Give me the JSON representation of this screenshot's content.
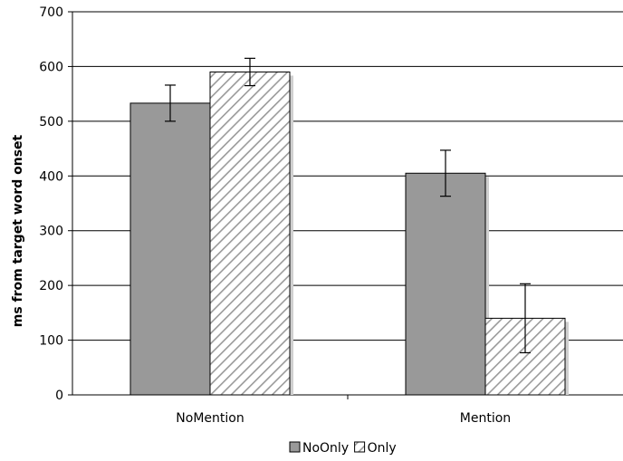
{
  "chart_data": {
    "type": "bar",
    "categories": [
      "NoMention",
      "Mention"
    ],
    "series": [
      {
        "name": "NoOnly",
        "values": [
          533,
          405
        ],
        "error": [
          33,
          42
        ],
        "color": "#999999",
        "pattern": "solid"
      },
      {
        "name": "Only",
        "values": [
          590,
          140
        ],
        "error": [
          25,
          63
        ],
        "color": "#ffffff",
        "pattern": "diagonal-hatch"
      }
    ],
    "ylabel": "ms from target word onset",
    "xlabel": "",
    "ylim": [
      0,
      700
    ],
    "yticks": [
      "0",
      "100",
      "200",
      "300",
      "400",
      "500",
      "600",
      "700"
    ],
    "grid": true,
    "legend_position": "bottom-center"
  }
}
